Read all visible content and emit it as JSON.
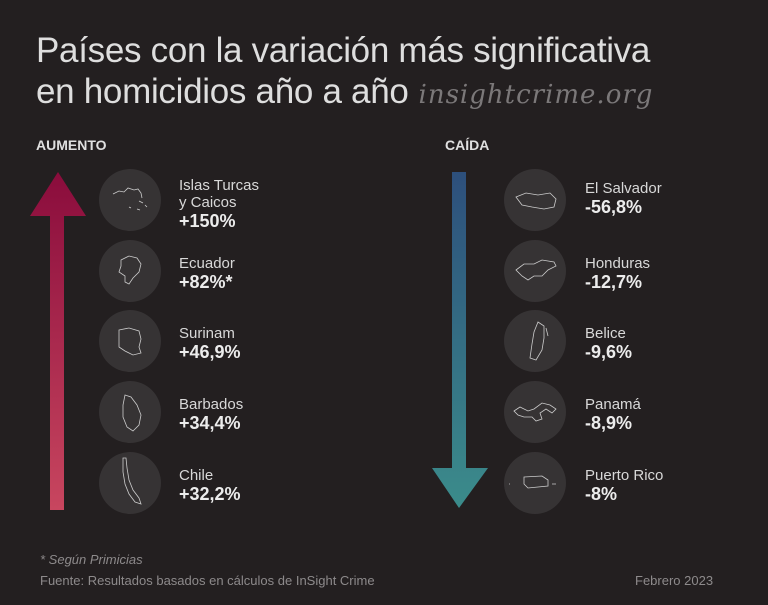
{
  "title_line1": "Países con la variación más significativa",
  "title_line2": "en homicidios año a año",
  "site": "insightcrime.org",
  "increase": {
    "label": "AUMENTO",
    "color_top": "#8a0c3c",
    "color_bottom": "#c8465f",
    "items": [
      {
        "name": "Islas Turcas y Caicos",
        "name1": "Islas Turcas",
        "name2": "y Caicos",
        "value": "+150%"
      },
      {
        "name": "Ecuador",
        "value": "+82%*"
      },
      {
        "name": "Surinam",
        "value": "+46,9%"
      },
      {
        "name": "Barbados",
        "value": "+34,4%"
      },
      {
        "name": "Chile",
        "value": "+32,2%"
      }
    ]
  },
  "decrease": {
    "label": "CAÍDA",
    "color_top": "#2d4f7c",
    "color_bottom": "#3b8c8b",
    "items": [
      {
        "name": "El Salvador",
        "value": "-56,8%"
      },
      {
        "name": "Honduras",
        "value": "-12,7%"
      },
      {
        "name": "Belice",
        "value": "-9,6%"
      },
      {
        "name": "Panamá",
        "value": "-8,9%"
      },
      {
        "name": "Puerto Rico",
        "value": "-8%"
      }
    ]
  },
  "footnote": "* Según Primicias",
  "source": "Fuente: Resultados basados en cálculos de InSight Crime",
  "date": "Febrero 2023"
}
